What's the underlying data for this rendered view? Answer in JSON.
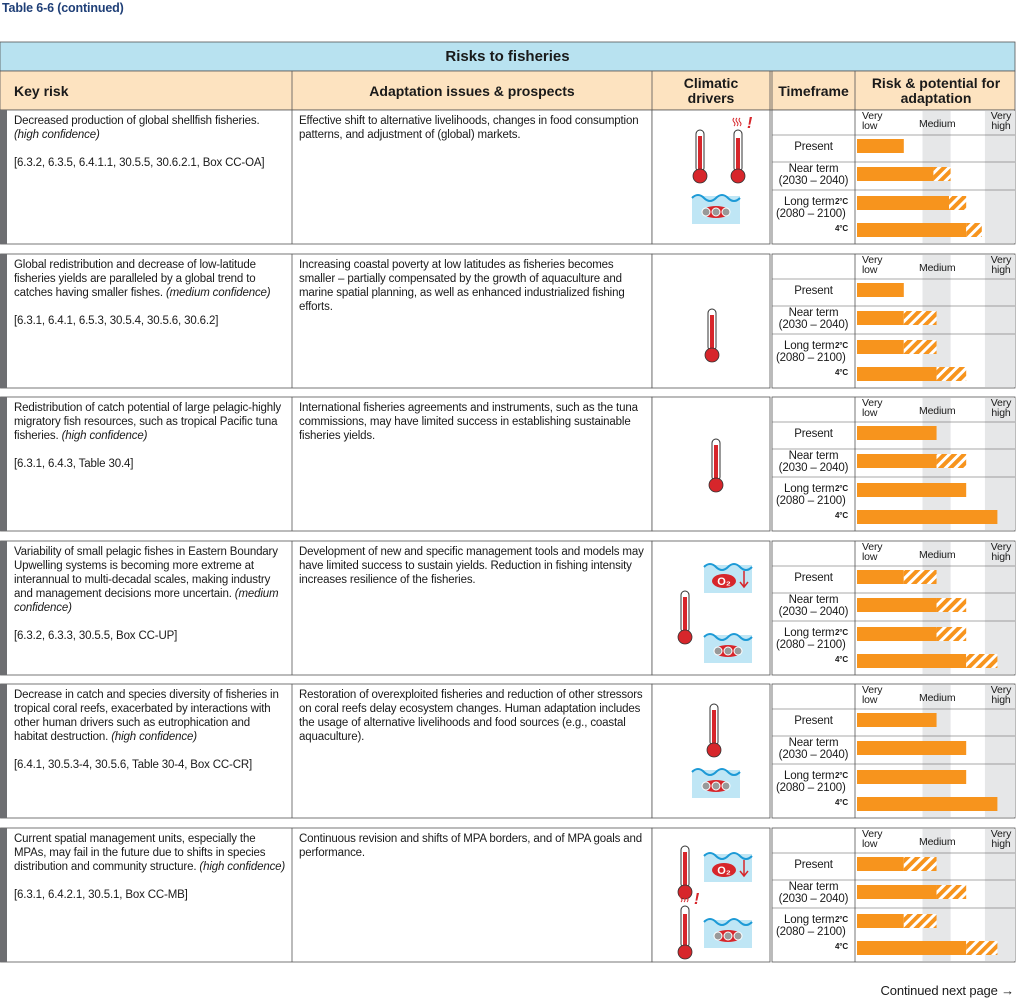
{
  "header": {
    "table_label": "Table 6-6 (continued)",
    "title": "Risks to fisheries",
    "columns": [
      "Key risk",
      "Adaptation issues & prospects",
      "Climatic drivers",
      "Timeframe",
      "Risk & potential for adaptation"
    ]
  },
  "scale_labels": [
    "Very low",
    "Medium",
    "Very high"
  ],
  "timeframe_labels": {
    "present": "Present",
    "near": "Near term",
    "near_years": "(2030 – 2040)",
    "long": "Long term",
    "long_years": "(2080 – 2100)",
    "two": "2°C",
    "four": "4°C"
  },
  "icons": {
    "oxygen": "O₂",
    "extreme": "!"
  },
  "rows": [
    {
      "key_risk": "Decreased production of global shellfish fisheries.",
      "confidence": "(high confidence)",
      "refs": "[6.3.2, 6.3.5, 6.4.1.1,  30.5.5, 30.6.2.1, Box CC-OA]",
      "adaptation": "Effective shift to alternative livelihoods, changes in food consumption patterns, and adjustment of (global) markets.",
      "bars": [
        [
          30
        ],
        [
          49,
          11
        ],
        [
          59,
          11
        ],
        [
          70,
          10
        ]
      ]
    },
    {
      "key_risk": "Global redistribution and decrease of low-latitude fisheries yields are paralleled by a global trend to catches having smaller fishes.",
      "confidence": "(medium confidence)",
      "refs": "[6.3.1, 6.4.1, 6.5.3, 30.5.4, 30.5.6, 30.6.2]",
      "adaptation": "Increasing coastal poverty at low latitudes as fisheries becomes smaller – partially compensated by the growth of aquaculture and marine spatial planning, as well as enhanced industrialized fishing efforts.",
      "bars": [
        [
          30
        ],
        [
          30,
          21
        ],
        [
          30,
          21
        ],
        [
          51,
          19
        ]
      ]
    },
    {
      "key_risk": "Redistribution of catch potential of large pelagic-highly migratory fish resources, such as tropical Pacific tuna fisheries.",
      "confidence": "(high confidence)",
      "refs": "[6.3.1, 6.4.3, Table 30.4]",
      "adaptation": "International fisheries agreements and instruments, such as the tuna commissions, may have limited success in establishing sustainable fisheries yields.",
      "bars": [
        [
          51
        ],
        [
          51,
          19
        ],
        [
          70
        ],
        [
          90
        ]
      ]
    },
    {
      "key_risk": "Variability of small pelagic fishes in Eastern Boundary Upwelling systems is becoming more extreme at interannual to multi-decadal scales, making industry and management decisions more uncertain.",
      "confidence": "(medium confidence)",
      "refs": "[6.3.2, 6.3.3, 30.5.5, Box CC-UP]",
      "adaptation": "Development of new and specific management tools and models may have limited success to sustain yields. Reduction in fishing intensity increases resilience of the fisheries.",
      "bars": [
        [
          30,
          21
        ],
        [
          51,
          19
        ],
        [
          51,
          19
        ],
        [
          70,
          20
        ]
      ]
    },
    {
      "key_risk": "Decrease in catch and species diversity of fisheries in tropical coral reefs, exacerbated by interactions with other human drivers such as eutrophication and habitat destruction.",
      "confidence": "(high confidence)",
      "refs": "[6.4.1, 30.5.3-4, 30.5.6, Table 30-4, Box CC-CR]",
      "adaptation": "Restoration of overexploited fisheries and reduction of other stressors on coral reefs delay ecosystem changes. Human adaptation includes the usage of alternative livelihoods and food sources (e.g., coastal aquaculture).",
      "bars": [
        [
          51
        ],
        [
          70
        ],
        [
          70
        ],
        [
          90
        ]
      ]
    },
    {
      "key_risk": "Current spatial management units, especially the MPAs, may fail in the future due to shifts in species distribution and community structure.",
      "confidence": "(high confidence)",
      "refs": "[6.3.1, 6.4.2.1, 30.5.1, Box CC-MB]",
      "adaptation": "Continuous revision and shifts of MPA borders, and of MPA goals and performance.",
      "bars": [
        [
          30,
          21
        ],
        [
          51,
          19
        ],
        [
          30,
          21
        ],
        [
          70,
          20
        ]
      ]
    }
  ],
  "footer": "Continued next page →"
}
